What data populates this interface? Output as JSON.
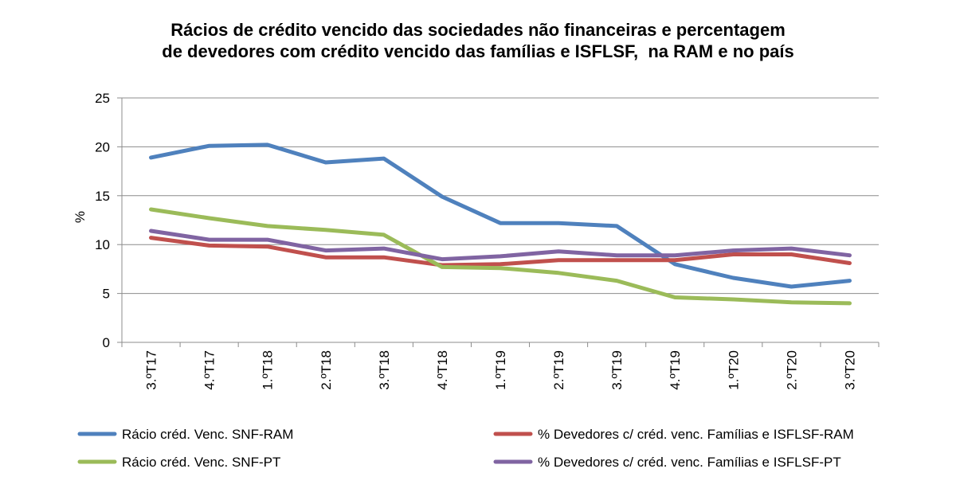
{
  "chart_data": {
    "type": "line",
    "title_lines": [
      "Rácios de crédito vencido das sociedades não financeiras e percentagem",
      "de devedores com crédito vencido das famílias e ISFLSF,  na RAM e no país"
    ],
    "xlabel": "",
    "ylabel": "%",
    "ylim": [
      0,
      25
    ],
    "yticks": [
      0,
      5,
      10,
      15,
      20,
      25
    ],
    "grid": true,
    "legend_position": "bottom",
    "categories": [
      "3.ºT17",
      "4.ºT17",
      "1.ºT18",
      "2.ºT18",
      "3.ºT18",
      "4.ºT18",
      "1.ºT19",
      "2.ºT19",
      "3.ºT19",
      "4.ºT19",
      "1.ºT20",
      "2.ºT20",
      "3.ºT20"
    ],
    "series": [
      {
        "name": "Rácio créd. Venc. SNF-RAM",
        "color": "#4F81BD",
        "values": [
          18.9,
          20.1,
          20.2,
          18.4,
          18.8,
          14.9,
          12.2,
          12.2,
          11.9,
          8.0,
          6.6,
          5.7,
          6.3
        ]
      },
      {
        "name": "% Devedores c/ créd. venc. Famílias e ISFLSF-RAM",
        "color": "#C0504D",
        "values": [
          10.7,
          9.9,
          9.8,
          8.7,
          8.7,
          7.9,
          8.0,
          8.4,
          8.4,
          8.4,
          9.0,
          9.0,
          8.1
        ]
      },
      {
        "name": "Rácio créd. Venc. SNF-PT",
        "color": "#9BBB59",
        "values": [
          13.6,
          12.7,
          11.9,
          11.5,
          11.0,
          7.7,
          7.6,
          7.1,
          6.3,
          4.6,
          4.4,
          4.1,
          4.0
        ]
      },
      {
        "name": "% Devedores c/ créd. venc. Famílias e ISFLSF-PT",
        "color": "#8064A2",
        "values": [
          11.4,
          10.5,
          10.5,
          9.4,
          9.6,
          8.5,
          8.8,
          9.3,
          8.9,
          8.9,
          9.4,
          9.6,
          8.9
        ]
      }
    ]
  }
}
